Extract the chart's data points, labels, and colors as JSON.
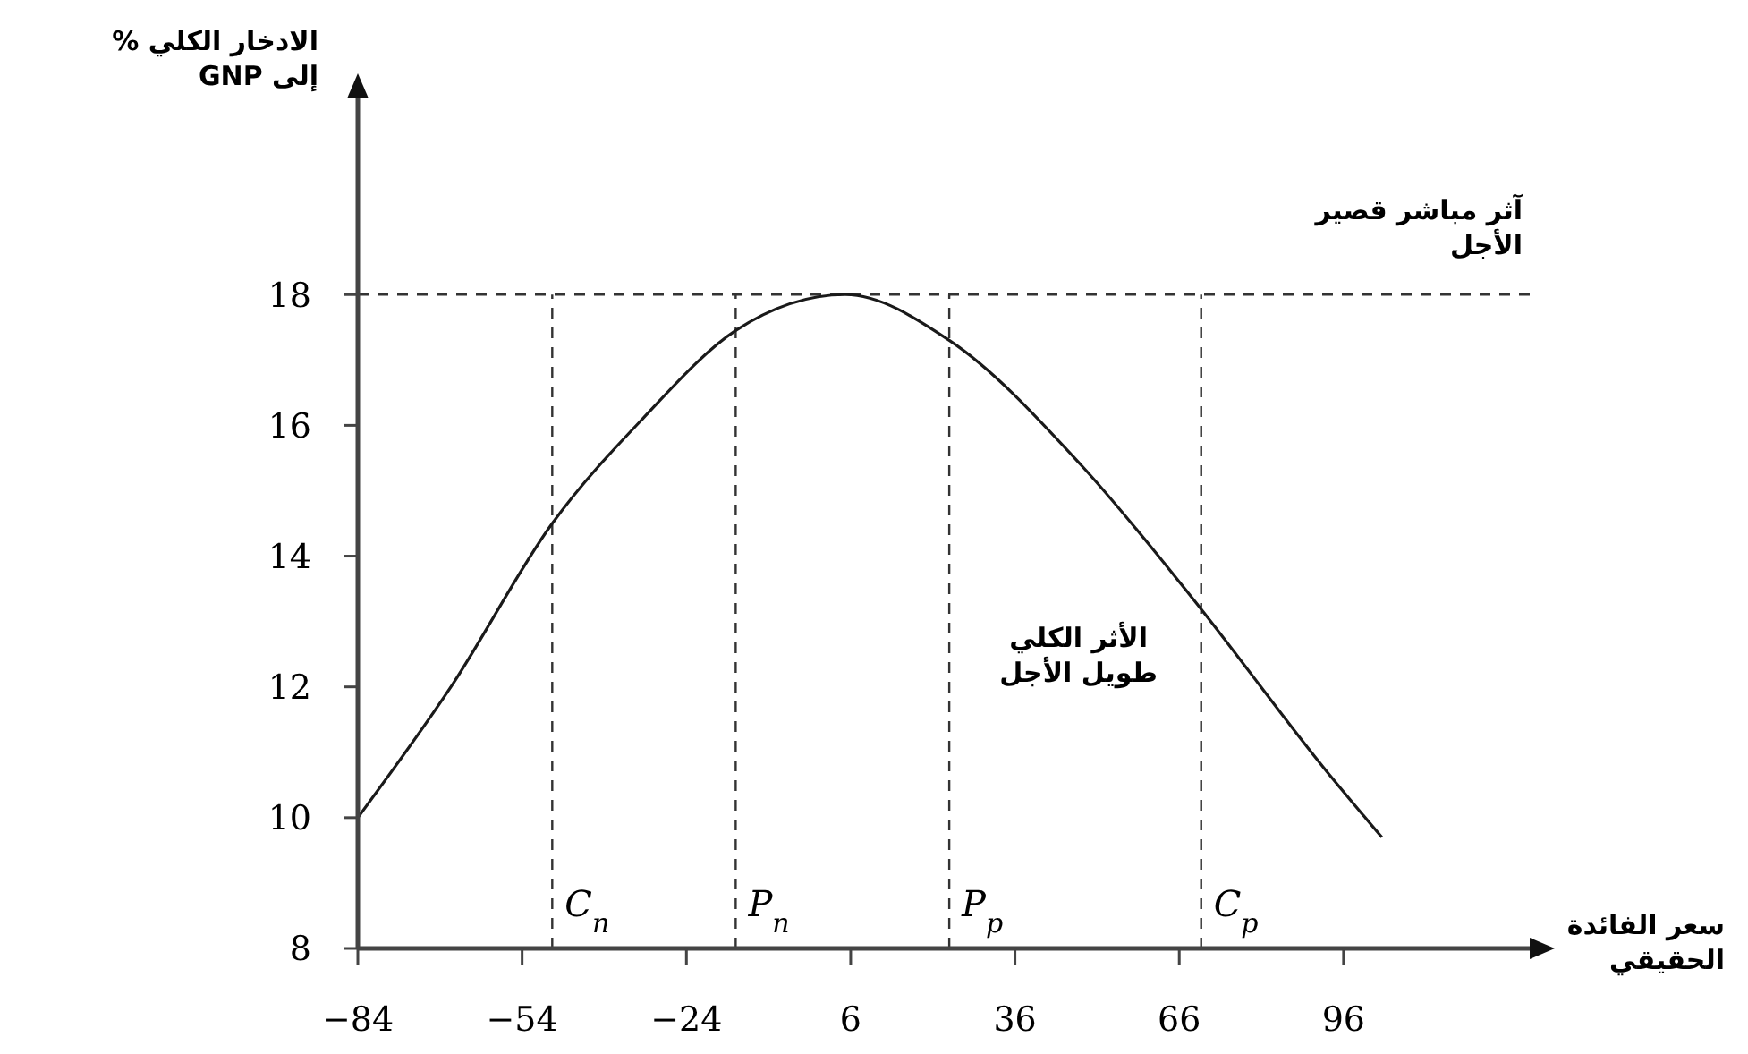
{
  "chart_data": {
    "type": "line",
    "ylabel": "الادخار الكلي %\nإلى GNP",
    "xlabel": "سعر الفائدة\nالحقيقي",
    "x": [
      -84,
      -67,
      -48.5,
      -32,
      -15,
      5,
      24,
      48,
      68,
      93,
      103
    ],
    "series": [
      {
        "color": "#1a1a1a",
        "values": [
          10,
          12,
          14.5,
          16.1,
          17.45,
          18,
          17.3,
          15.4,
          13.4,
          10.7,
          9.7
        ]
      }
    ],
    "xlim": [
      -84,
      130
    ],
    "ylim": [
      8,
      21
    ],
    "xticks": [
      {
        "value": -84,
        "label": "−84"
      },
      {
        "value": -54,
        "label": "−54"
      },
      {
        "value": -24,
        "label": "−24"
      },
      6,
      36,
      66,
      96
    ],
    "yticks": [
      8,
      10,
      12,
      14,
      16,
      18
    ],
    "ref_lines": [
      {
        "axis": "y",
        "value": 18,
        "label": "آثر مباشر قصير\nالأجل",
        "line_style": "dashed"
      },
      {
        "axis": "x",
        "value": -48.5,
        "label": "C$_{n}$",
        "line_style": "dashed"
      },
      {
        "axis": "x",
        "value": -15,
        "label": "P$_{n}$",
        "line_style": "dashed"
      },
      {
        "axis": "x",
        "value": 24,
        "label": "P$_{p}$",
        "line_style": "dashed"
      },
      {
        "axis": "x",
        "value": 70,
        "label": "C$_{p}$",
        "line_style": "dashed"
      }
    ],
    "annotations": [
      "الأثر الكلي\nطويل الأجل"
    ],
    "grid": false,
    "marker": "none",
    "line_style": "solid"
  }
}
